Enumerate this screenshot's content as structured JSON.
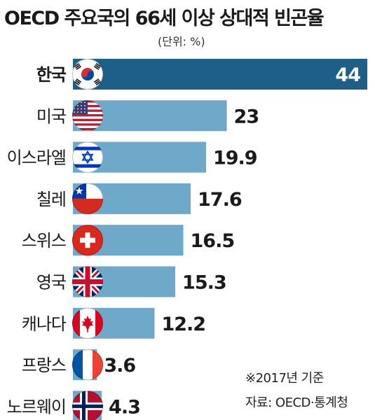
{
  "chart_data": {
    "type": "bar",
    "orientation": "horizontal",
    "title": "OECD 주요국의 66세 이상 상대적 빈곤율",
    "unit": "(단위: %)",
    "categories": [
      "한국",
      "미국",
      "이스라엘",
      "칠레",
      "스위스",
      "영국",
      "캐나다",
      "프랑스",
      "노르웨이"
    ],
    "values": [
      44,
      23,
      19.9,
      17.6,
      16.5,
      15.3,
      12.2,
      3.6,
      4.3
    ],
    "value_labels": [
      "44",
      "23",
      "19.9",
      "17.6",
      "16.5",
      "15.3",
      "12.2",
      "3.6",
      "4.3"
    ],
    "flags": [
      "south-korea-flag-icon",
      "usa-flag-icon",
      "israel-flag-icon",
      "chile-flag-icon",
      "switzerland-flag-icon",
      "uk-flag-icon",
      "canada-flag-icon",
      "france-flag-icon",
      "norway-flag-icon"
    ],
    "highlight_index": 0,
    "xlim": [
      0,
      44
    ],
    "grid": false,
    "legend": "none",
    "colors": {
      "bar": "#6ea9c9",
      "highlight": "#1d5f86",
      "highlight_text": "#ffffff",
      "text": "#1a1a1a"
    }
  },
  "notes": {
    "year": "※2017년 기준",
    "source": "자료: OECD·통계청"
  }
}
